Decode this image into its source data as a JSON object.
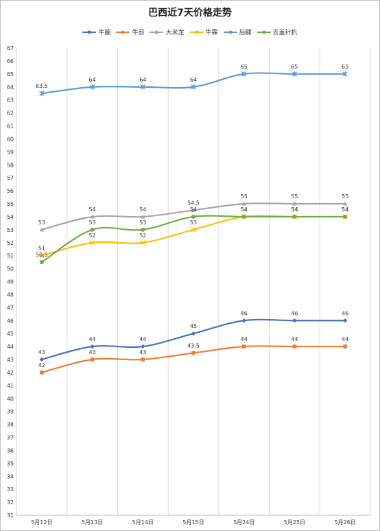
{
  "chart_data": {
    "type": "line",
    "title": "巴西近7天价格走势",
    "categories": [
      "5月12日",
      "5月13日",
      "5月14日",
      "5月15日",
      "5月24日",
      "5月25日",
      "5月26日"
    ],
    "ylim": [
      31,
      67
    ],
    "y_ticks": [
      31,
      32,
      33,
      34,
      35,
      36,
      37,
      38,
      39,
      40,
      41,
      42,
      43,
      44,
      45,
      46,
      47,
      48,
      49,
      50,
      51,
      52,
      53,
      54,
      55,
      56,
      57,
      58,
      59,
      60,
      61,
      62,
      63,
      64,
      65,
      66,
      67
    ],
    "grid": "vertical",
    "legend_position": "top",
    "series": [
      {
        "name": "牛腩",
        "color": "#4472C4",
        "marker": "diamond",
        "values": [
          43,
          44,
          44,
          45,
          46,
          46,
          46
        ]
      },
      {
        "name": "牛前",
        "color": "#ED7D31",
        "marker": "square",
        "values": [
          42,
          43,
          43,
          43.5,
          44,
          44,
          44
        ]
      },
      {
        "name": "大米龙",
        "color": "#A5A5A5",
        "marker": "triangle",
        "values": [
          53,
          54,
          54,
          54.5,
          55,
          55,
          55
        ]
      },
      {
        "name": "牛霖",
        "color": "#FFC000",
        "marker": "x",
        "values": [
          51,
          52,
          52,
          53,
          54,
          54,
          54
        ]
      },
      {
        "name": "后腱",
        "color": "#5B9BD5",
        "marker": "star",
        "values": [
          63.5,
          64,
          64,
          64,
          65,
          65,
          65
        ]
      },
      {
        "name": "去盖针扒",
        "color": "#70AD47",
        "marker": "circle",
        "values": [
          50.5,
          53,
          53,
          54,
          54,
          54,
          54
        ]
      }
    ]
  }
}
